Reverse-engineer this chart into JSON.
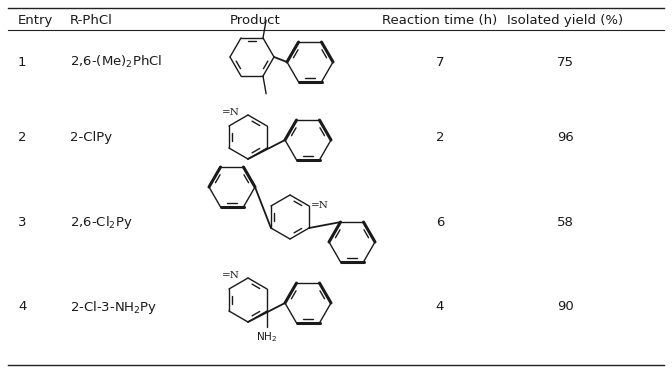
{
  "headers": [
    "Entry",
    "R-PhCl",
    "Product",
    "Reaction time (h)",
    "Isolated yield (%)"
  ],
  "rows": [
    {
      "entry": "1",
      "r_phcl": "2,6-(Me)$_2$PhCl",
      "reaction_time": "7",
      "isolated_yield": "75"
    },
    {
      "entry": "2",
      "r_phcl": "2-ClPy",
      "reaction_time": "2",
      "isolated_yield": "96"
    },
    {
      "entry": "3",
      "r_phcl": "2,6-Cl$_2$Py",
      "reaction_time": "6",
      "isolated_yield": "58"
    },
    {
      "entry": "4",
      "r_phcl": "2-Cl-3-NH$_2$Py",
      "reaction_time": "4",
      "isolated_yield": "90"
    }
  ],
  "bg_color": "#ffffff",
  "text_color": "#1a1a1a",
  "line_color": "#222222",
  "font_size": 9.5,
  "header_font_size": 9.5
}
